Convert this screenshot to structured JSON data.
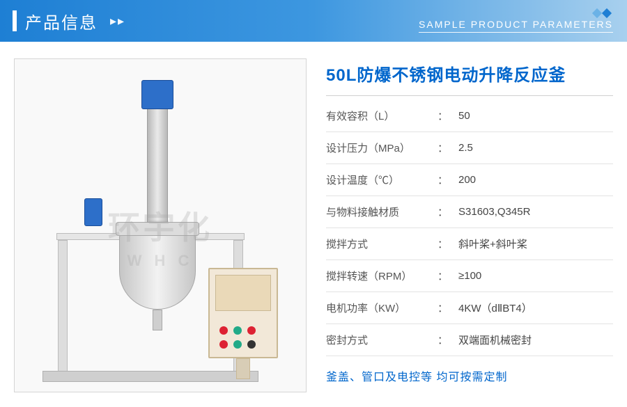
{
  "header": {
    "title_cn": "产品信息",
    "title_en": "SAMPLE PRODUCT PARAMETERS",
    "bg_gradient_from": "#1e7fd4",
    "bg_gradient_to": "#a8d0ee",
    "diamond_color_1": "#6bb2e6",
    "diamond_color_2": "#1e7fd4"
  },
  "image": {
    "watermark_cn": "环宇化",
    "watermark_en": "W H C",
    "border_color": "#d5d5d5"
  },
  "product": {
    "title": "50L防爆不锈钢电动升降反应釜",
    "title_color": "#0066cc"
  },
  "specs": [
    {
      "label": "有效容积（L）",
      "value": "50"
    },
    {
      "label": "设计压力（MPa）",
      "value": "2.5"
    },
    {
      "label": "设计温度（℃）",
      "value": "200"
    },
    {
      "label": "与物料接触材质",
      "value": "S31603,Q345R"
    },
    {
      "label": "搅拌方式",
      "value": "斜叶桨+斜叶桨"
    },
    {
      "label": "搅拌转速（RPM）",
      "value": "≥100"
    },
    {
      "label": "电机功率（KW）",
      "value": "4KW（dⅡBT4）"
    },
    {
      "label": "密封方式",
      "value": "双端面机械密封"
    }
  ],
  "custom_note": "釜盖、管口及电控等 均可按需定制",
  "colors": {
    "text_muted": "#555555",
    "divider": "#e3e3e3",
    "accent": "#0066cc"
  }
}
